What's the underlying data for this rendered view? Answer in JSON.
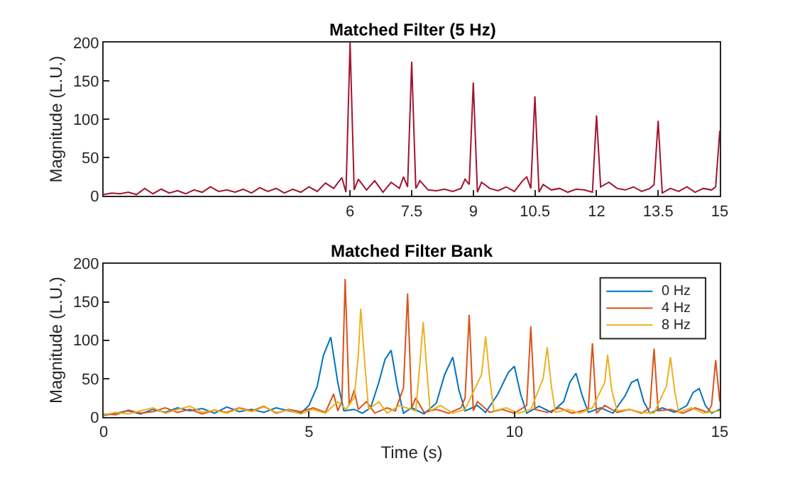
{
  "chart_data": [
    {
      "type": "line",
      "title": "Matched Filter (5 Hz)",
      "ylabel": "Magnitude (L.U.)",
      "xlim": [
        0,
        15
      ],
      "xticks": [
        6,
        7.5,
        9,
        10.5,
        12,
        13.5,
        15
      ],
      "ylim": [
        0,
        200
      ],
      "yticks": [
        0,
        50,
        100,
        150,
        200
      ],
      "legend": false,
      "series": [
        {
          "color": "#a2142f",
          "x": [
            0,
            0.2,
            0.4,
            0.6,
            0.8,
            1.0,
            1.2,
            1.4,
            1.6,
            1.8,
            2.0,
            2.2,
            2.4,
            2.6,
            2.8,
            3.0,
            3.2,
            3.4,
            3.6,
            3.8,
            4.0,
            4.2,
            4.4,
            4.6,
            4.8,
            5.0,
            5.2,
            5.4,
            5.6,
            5.8,
            5.9,
            6.0,
            6.1,
            6.2,
            6.4,
            6.6,
            6.8,
            7.0,
            7.2,
            7.3,
            7.4,
            7.5,
            7.6,
            7.7,
            7.9,
            8.1,
            8.3,
            8.5,
            8.7,
            8.8,
            8.9,
            9.0,
            9.1,
            9.2,
            9.4,
            9.6,
            9.8,
            10.0,
            10.2,
            10.3,
            10.4,
            10.5,
            10.6,
            10.7,
            10.9,
            11.1,
            11.3,
            11.5,
            11.7,
            11.9,
            12.0,
            12.1,
            12.3,
            12.5,
            12.7,
            12.9,
            13.1,
            13.3,
            13.4,
            13.5,
            13.6,
            13.8,
            14.0,
            14.2,
            14.4,
            14.6,
            14.8,
            14.9,
            15.0
          ],
          "values": [
            2,
            4,
            3,
            5,
            2,
            10,
            3,
            9,
            4,
            7,
            3,
            8,
            5,
            12,
            6,
            8,
            5,
            9,
            4,
            11,
            6,
            10,
            4,
            9,
            5,
            12,
            6,
            17,
            10,
            24,
            5,
            200,
            8,
            22,
            8,
            20,
            5,
            18,
            10,
            25,
            12,
            175,
            10,
            20,
            8,
            7,
            9,
            6,
            10,
            22,
            15,
            148,
            5,
            18,
            10,
            7,
            12,
            6,
            20,
            25,
            10,
            130,
            5,
            15,
            8,
            10,
            5,
            9,
            8,
            5,
            105,
            12,
            18,
            10,
            8,
            12,
            6,
            10,
            15,
            98,
            4,
            10,
            6,
            12,
            5,
            10,
            8,
            12,
            85
          ]
        }
      ]
    },
    {
      "type": "line",
      "title": "Matched Filter Bank",
      "xlabel": "Time (s)",
      "ylabel": "Magnitude (L.U.)",
      "xlim": [
        0,
        15
      ],
      "xticks": [
        0,
        5,
        10,
        15
      ],
      "ylim": [
        0,
        200
      ],
      "yticks": [
        0,
        50,
        100,
        150,
        200
      ],
      "legend": "top right",
      "series": [
        {
          "name": "0 Hz",
          "color": "#0072bd",
          "x": [
            0,
            0.3,
            0.6,
            0.9,
            1.2,
            1.5,
            1.8,
            2.1,
            2.4,
            2.7,
            3.0,
            3.3,
            3.6,
            3.9,
            4.2,
            4.5,
            4.8,
            5.0,
            5.2,
            5.35,
            5.53,
            5.7,
            5.85,
            6.1,
            6.3,
            6.5,
            6.7,
            6.85,
            7.0,
            7.15,
            7.3,
            7.5,
            7.8,
            8.1,
            8.3,
            8.5,
            8.65,
            8.8,
            9.1,
            9.3,
            9.6,
            9.85,
            10.0,
            10.15,
            10.3,
            10.6,
            10.9,
            11.2,
            11.35,
            11.5,
            11.65,
            11.8,
            12.1,
            12.4,
            12.7,
            12.85,
            13.0,
            13.15,
            13.3,
            13.6,
            13.9,
            14.2,
            14.35,
            14.5,
            14.65,
            14.8,
            15.0
          ],
          "values": [
            2,
            5,
            8,
            4,
            10,
            6,
            12,
            8,
            11,
            5,
            13,
            7,
            10,
            6,
            12,
            8,
            5,
            15,
            40,
            80,
            104,
            45,
            8,
            10,
            5,
            12,
            45,
            75,
            87,
            40,
            5,
            12,
            4,
            18,
            55,
            78,
            35,
            8,
            15,
            6,
            30,
            58,
            66,
            30,
            5,
            14,
            6,
            20,
            45,
            57,
            28,
            6,
            12,
            5,
            28,
            45,
            49,
            20,
            5,
            12,
            6,
            15,
            32,
            37,
            15,
            5,
            10
          ]
        },
        {
          "name": "4 Hz",
          "color": "#d95319",
          "x": [
            0,
            0.3,
            0.6,
            0.9,
            1.2,
            1.5,
            1.8,
            2.1,
            2.4,
            2.7,
            3.0,
            3.3,
            3.6,
            3.9,
            4.2,
            4.5,
            4.8,
            5.1,
            5.4,
            5.6,
            5.7,
            5.8,
            5.88,
            5.98,
            6.1,
            6.2,
            6.4,
            6.6,
            6.9,
            7.1,
            7.3,
            7.4,
            7.5,
            7.6,
            7.8,
            8.1,
            8.4,
            8.7,
            8.8,
            8.9,
            9.0,
            9.1,
            9.4,
            9.7,
            10.0,
            10.3,
            10.4,
            10.5,
            10.8,
            11.1,
            11.4,
            11.8,
            11.9,
            12.0,
            12.2,
            12.5,
            12.8,
            13.1,
            13.3,
            13.4,
            13.5,
            13.8,
            14.1,
            14.4,
            14.7,
            14.8,
            14.9,
            15.0
          ],
          "values": [
            4,
            3,
            9,
            5,
            7,
            12,
            6,
            10,
            4,
            9,
            6,
            12,
            8,
            14,
            5,
            10,
            7,
            12,
            6,
            30,
            8,
            20,
            180,
            15,
            35,
            10,
            20,
            5,
            12,
            8,
            38,
            161,
            12,
            25,
            6,
            10,
            5,
            12,
            25,
            133,
            8,
            20,
            6,
            10,
            5,
            15,
            118,
            10,
            6,
            12,
            5,
            10,
            96,
            5,
            15,
            6,
            10,
            5,
            12,
            89,
            8,
            10,
            5,
            12,
            6,
            15,
            74,
            20
          ]
        },
        {
          "name": "8 Hz",
          "color": "#edb120",
          "x": [
            0,
            0.3,
            0.6,
            0.9,
            1.2,
            1.5,
            1.8,
            2.1,
            2.4,
            2.7,
            3.0,
            3.3,
            3.6,
            3.9,
            4.2,
            4.5,
            4.8,
            5.1,
            5.4,
            5.7,
            5.9,
            6.1,
            6.2,
            6.26,
            6.35,
            6.45,
            6.7,
            6.9,
            7.2,
            7.6,
            7.7,
            7.78,
            7.87,
            7.95,
            8.2,
            8.5,
            8.8,
            9.2,
            9.3,
            9.4,
            9.5,
            9.8,
            10.1,
            10.4,
            10.7,
            10.8,
            10.9,
            11.0,
            11.3,
            11.6,
            11.9,
            12.2,
            12.27,
            12.37,
            12.5,
            12.8,
            13.1,
            13.4,
            13.7,
            13.8,
            13.9,
            14.0,
            14.3,
            14.6,
            15.0
          ],
          "values": [
            3,
            6,
            4,
            8,
            12,
            5,
            10,
            14,
            6,
            9,
            5,
            11,
            7,
            13,
            6,
            9,
            4,
            10,
            5,
            20,
            10,
            25,
            80,
            141,
            75,
            10,
            20,
            5,
            15,
            8,
            70,
            124,
            60,
            8,
            15,
            5,
            10,
            55,
            105,
            50,
            8,
            12,
            5,
            10,
            50,
            91,
            40,
            6,
            10,
            5,
            12,
            45,
            81,
            35,
            8,
            10,
            6,
            5,
            40,
            78,
            35,
            6,
            12,
            5,
            8
          ]
        }
      ]
    }
  ]
}
